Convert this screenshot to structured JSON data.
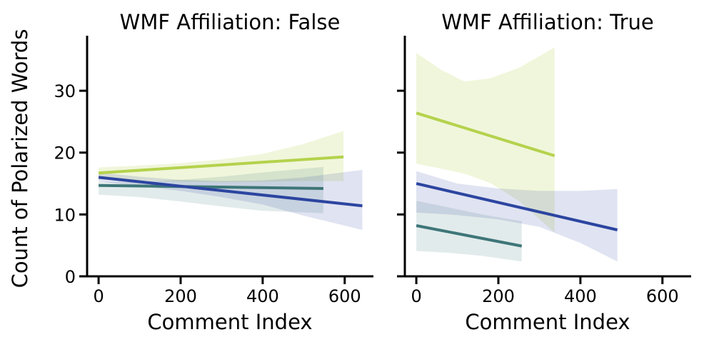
{
  "chart_data": {
    "type": "line",
    "xlabel": "Comment Index",
    "ylabel": "Count of Polarized Words",
    "xticks": [
      0,
      200,
      400,
      600
    ],
    "yticks": [
      0,
      10,
      20,
      30
    ],
    "xlim": [
      -28,
      670
    ],
    "ylim": [
      0,
      38.9
    ],
    "grid": false,
    "legend": "none",
    "axis_color": "#000000",
    "panels": [
      {
        "title": "WMF Affiliation: False",
        "series": [
          {
            "name": "green",
            "color": "#b4d24c",
            "band_alpha": 0.2,
            "x": [
              0,
              597
            ],
            "y": [
              16.7,
              19.3
            ],
            "ci_x": [
              0,
              100,
              200,
              300,
              400,
              500,
              597
            ],
            "ci_top": [
              17.6,
              17.9,
              18.3,
              18.9,
              19.8,
              21.4,
              23.5
            ],
            "ci_bottom": [
              15.7,
              15.5,
              15.3,
              15.2,
              15.3,
              15.4,
              15.4
            ]
          },
          {
            "name": "teal",
            "color": "#3e7678",
            "band_alpha": 0.15,
            "x": [
              0,
              548
            ],
            "y": [
              14.7,
              14.2
            ],
            "ci_x": [
              0,
              100,
              200,
              300,
              400,
              548
            ],
            "ci_top": [
              15.2,
              15.3,
              15.6,
              16.1,
              16.8,
              17.7
            ],
            "ci_bottom": [
              13.2,
              12.8,
              12.1,
              11.3,
              10.6,
              10.2
            ]
          },
          {
            "name": "blue",
            "color": "#2c45a0",
            "band_alpha": 0.15,
            "x": [
              0,
              643
            ],
            "y": [
              16.0,
              11.4
            ],
            "ci_x": [
              0,
              100,
              200,
              300,
              400,
              500,
              643
            ],
            "ci_top": [
              16.8,
              16.1,
              15.6,
              15.4,
              15.5,
              16.0,
              17.2
            ],
            "ci_bottom": [
              15.3,
              14.6,
              13.8,
              12.8,
              11.6,
              9.8,
              7.5
            ]
          }
        ]
      },
      {
        "title": "WMF Affiliation: True",
        "series": [
          {
            "name": "green",
            "color": "#b4d24c",
            "band_alpha": 0.2,
            "x": [
              0,
              337
            ],
            "y": [
              26.4,
              19.5
            ],
            "ci_x": [
              0,
              60,
              117,
              180,
              250,
              337
            ],
            "ci_top": [
              36.1,
              33.4,
              31.5,
              32.0,
              33.7,
              37.0
            ],
            "ci_bottom": [
              18.2,
              17.4,
              16.6,
              15.1,
              12.2,
              7.1
            ]
          },
          {
            "name": "teal",
            "color": "#3e7678",
            "band_alpha": 0.15,
            "x": [
              0,
              257
            ],
            "y": [
              8.2,
              4.9
            ],
            "ci_x": [
              0,
              80,
              160,
              257
            ],
            "ci_top": [
              12.2,
              11.1,
              10.0,
              8.9
            ],
            "ci_bottom": [
              4.1,
              3.8,
              3.3,
              2.4
            ]
          },
          {
            "name": "blue",
            "color": "#2c45a0",
            "band_alpha": 0.15,
            "x": [
              0,
              490
            ],
            "y": [
              15.0,
              7.5
            ],
            "ci_x": [
              0,
              100,
              200,
              300,
              400,
              490
            ],
            "ci_top": [
              17.0,
              15.0,
              14.2,
              13.8,
              13.8,
              14.1
            ],
            "ci_bottom": [
              10.3,
              9.9,
              9.2,
              8.0,
              5.4,
              2.4
            ]
          }
        ]
      }
    ]
  }
}
